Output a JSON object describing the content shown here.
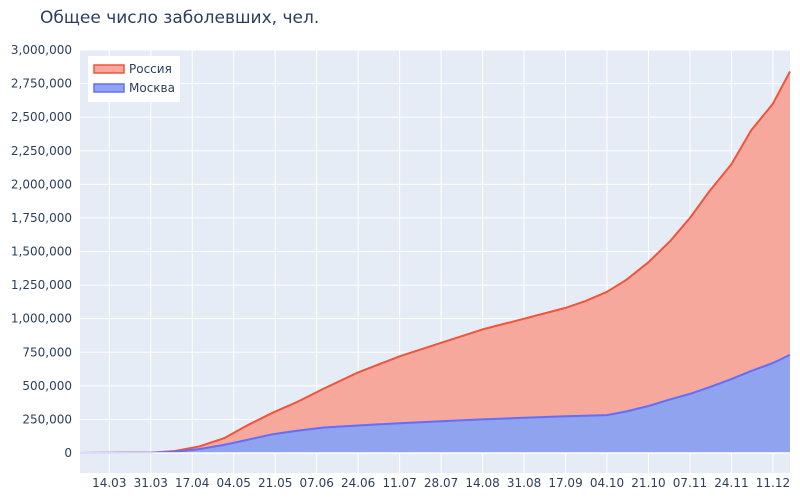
{
  "chart_data": {
    "type": "area",
    "title": "Общее число заболевших, чел.",
    "xlabel": "",
    "ylabel": "",
    "ylim": [
      0,
      3000000
    ],
    "y_ticks": [
      0,
      250000,
      500000,
      750000,
      1000000,
      1250000,
      1500000,
      1750000,
      2000000,
      2250000,
      2500000,
      2750000,
      3000000
    ],
    "y_tick_labels": [
      "0",
      "250,000",
      "500,000",
      "750,000",
      "1,000,000",
      "1,250,000",
      "1,500,000",
      "1,750,000",
      "2,000,000",
      "2,250,000",
      "2,500,000",
      "2,750,000",
      "3,000,000"
    ],
    "x_range": [
      "2020-03-02",
      "2020-12-18"
    ],
    "x_ticks": [
      "2020-03-14",
      "2020-03-31",
      "2020-04-17",
      "2020-05-04",
      "2020-05-21",
      "2020-06-07",
      "2020-06-24",
      "2020-07-11",
      "2020-07-28",
      "2020-08-14",
      "2020-08-31",
      "2020-09-17",
      "2020-10-04",
      "2020-10-21",
      "2020-11-07",
      "2020-11-24",
      "2020-12-11"
    ],
    "x_tick_labels": [
      "14.03",
      "31.03",
      "17.04",
      "04.05",
      "21.05",
      "07.06",
      "24.06",
      "11.07",
      "28.07",
      "14.08",
      "31.08",
      "17.09",
      "04.10",
      "21.10",
      "07.11",
      "24.11",
      "11.12"
    ],
    "grid": true,
    "legend_position": "top-left",
    "series": [
      {
        "name": "Россия",
        "color": "#ef553b",
        "fill": "#f5a89b",
        "x": [
          "2020-03-02",
          "2020-03-31",
          "2020-04-10",
          "2020-04-20",
          "2020-04-30",
          "2020-05-10",
          "2020-05-20",
          "2020-05-30",
          "2020-06-10",
          "2020-06-24",
          "2020-07-11",
          "2020-07-28",
          "2020-08-14",
          "2020-08-31",
          "2020-09-17",
          "2020-09-25",
          "2020-10-04",
          "2020-10-12",
          "2020-10-21",
          "2020-10-30",
          "2020-11-07",
          "2020-11-15",
          "2020-11-24",
          "2020-12-02",
          "2020-12-11",
          "2020-12-18"
        ],
        "values": [
          0,
          2000,
          15000,
          50000,
          110000,
          210000,
          300000,
          380000,
          480000,
          600000,
          720000,
          820000,
          920000,
          1000000,
          1080000,
          1130000,
          1200000,
          1290000,
          1420000,
          1580000,
          1750000,
          1950000,
          2150000,
          2400000,
          2600000,
          2840000
        ]
      },
      {
        "name": "Москва",
        "color": "#636efa",
        "fill": "#8fa3ee",
        "x": [
          "2020-03-02",
          "2020-03-31",
          "2020-04-10",
          "2020-04-20",
          "2020-04-30",
          "2020-05-10",
          "2020-05-20",
          "2020-05-30",
          "2020-06-10",
          "2020-06-24",
          "2020-07-11",
          "2020-07-28",
          "2020-08-14",
          "2020-08-31",
          "2020-09-17",
          "2020-10-04",
          "2020-10-12",
          "2020-10-21",
          "2020-10-30",
          "2020-11-07",
          "2020-11-15",
          "2020-11-24",
          "2020-12-02",
          "2020-12-11",
          "2020-12-18"
        ],
        "values": [
          0,
          2000,
          10000,
          30000,
          60000,
          100000,
          140000,
          165000,
          190000,
          205000,
          222000,
          237000,
          250000,
          262000,
          273000,
          282000,
          310000,
          350000,
          400000,
          440000,
          490000,
          550000,
          610000,
          670000,
          730000
        ]
      }
    ]
  }
}
